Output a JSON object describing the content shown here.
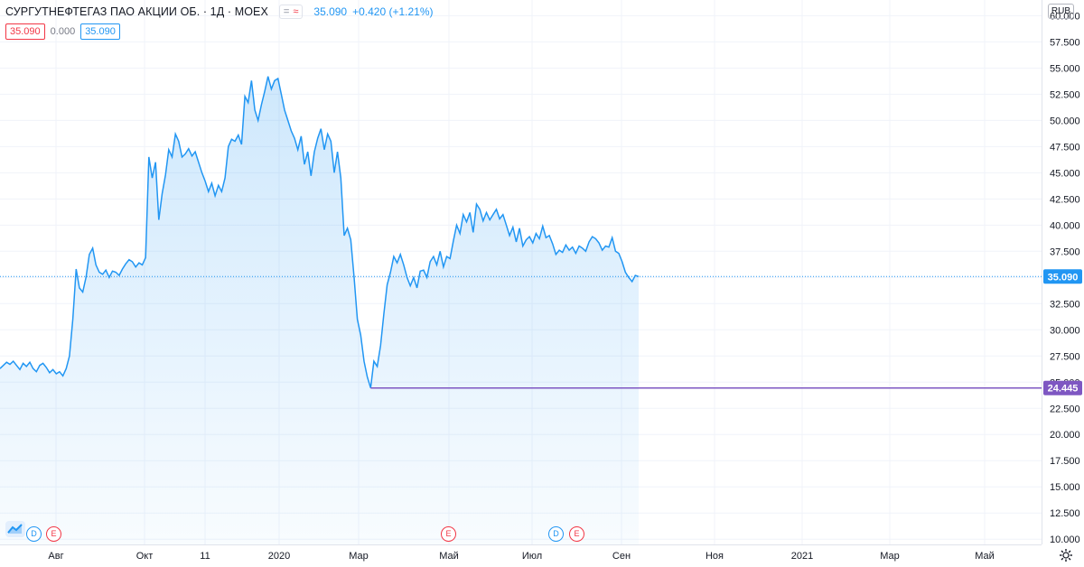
{
  "header": {
    "title": "СУРГУТНЕФТЕГАЗ ПАО АКЦИИ ОБ. · 1Д · MOEX",
    "controls": {
      "eq_glyph": "=",
      "wave_glyph": "≈"
    },
    "last_price": "35.090",
    "change": "+0.420 (+1.21%)"
  },
  "ohlc": {
    "a": "35.090",
    "b": "0.000",
    "c": "35.090"
  },
  "currency": "RUB",
  "colors": {
    "line": "#2196f3",
    "fill": "#2196f3",
    "level_line": "#7e57c2",
    "grid": "#f0f3fa",
    "up": "#2196f3",
    "down": "#f23645"
  },
  "events": [
    {
      "kind": "D"
    },
    {
      "kind": "E"
    },
    {
      "kind": "E"
    },
    {
      "kind": "D"
    },
    {
      "kind": "E"
    }
  ],
  "icons": {
    "logo": "tradingview-logo-icon",
    "settings": "gear-icon"
  },
  "chart_data": {
    "type": "area",
    "title": "",
    "xlabel": "",
    "ylabel": "",
    "ylim": [
      9.5,
      61.5
    ],
    "y_ticks": [
      "10.000",
      "12.500",
      "15.000",
      "17.500",
      "20.000",
      "22.500",
      "25.000",
      "27.500",
      "30.000",
      "32.500",
      "35.000",
      "37.500",
      "40.000",
      "42.500",
      "45.000",
      "47.500",
      "50.000",
      "52.500",
      "55.000",
      "57.500",
      "60.000"
    ],
    "x_ticks": [
      "Авг",
      "Окт",
      "11",
      "2020",
      "Мар",
      "Май",
      "Июл",
      "Сен",
      "Ноя",
      "2021",
      "Мар",
      "Май"
    ],
    "current_price": {
      "value": 35.09,
      "label": "35.090"
    },
    "min_level": {
      "value": 24.445,
      "label": "24.445"
    },
    "grid": true,
    "series": [
      {
        "values": [
          26.3,
          26.6,
          26.9,
          26.7,
          27.0,
          26.6,
          26.2,
          26.8,
          26.5,
          26.9,
          26.3,
          26.0,
          26.6,
          26.8,
          26.4,
          25.9,
          26.2,
          25.8,
          26.0,
          25.6,
          26.3,
          27.5,
          31.0,
          35.8,
          34.0,
          33.6,
          35.0,
          37.2,
          37.8,
          36.2,
          35.5,
          35.3,
          35.7,
          35.0,
          35.6,
          35.5,
          35.2,
          35.8,
          36.3,
          36.7,
          36.5,
          36.0,
          36.4,
          36.2,
          36.9,
          46.5,
          44.5,
          46.0,
          40.5,
          43.0,
          44.8,
          47.2,
          46.5,
          48.7,
          48.0,
          46.5,
          46.8,
          47.3,
          46.6,
          47.0,
          46.0,
          45.0,
          44.2,
          43.2,
          44.0,
          42.8,
          43.8,
          43.2,
          44.5,
          47.5,
          48.2,
          48.0,
          48.6,
          47.7,
          52.3,
          51.7,
          53.8,
          51.0,
          50.0,
          51.5,
          52.8,
          54.2,
          53.0,
          53.8,
          54.0,
          52.5,
          51.0,
          50.0,
          49.0,
          48.3,
          47.2,
          48.5,
          45.8,
          47.0,
          44.7,
          47.0,
          48.3,
          49.2,
          47.2,
          48.7,
          48.0,
          45.0,
          47.0,
          44.5,
          39.0,
          39.7,
          38.6,
          35.0,
          31.0,
          29.5,
          27.0,
          25.5,
          24.445,
          27.0,
          26.5,
          28.5,
          31.5,
          34.3,
          35.5,
          37.0,
          36.4,
          37.2,
          36.2,
          35.0,
          34.2,
          35.0,
          34.0,
          35.6,
          35.7,
          35.0,
          36.5,
          37.0,
          36.2,
          37.5,
          36.0,
          37.0,
          36.8,
          38.5,
          40.0,
          39.2,
          41.0,
          40.3,
          41.2,
          39.3,
          42.0,
          41.5,
          40.4,
          41.2,
          40.5,
          41.0,
          41.5,
          40.6,
          41.0,
          40.0,
          39.0,
          39.8,
          38.4,
          39.7,
          38.0,
          38.6,
          38.9,
          38.3,
          39.2,
          38.7,
          39.9,
          38.8,
          39.0,
          38.2,
          37.2,
          37.6,
          37.4,
          38.1,
          37.6,
          37.9,
          37.3,
          38.0,
          37.8,
          37.5,
          38.4,
          38.9,
          38.7,
          38.3,
          37.6,
          38.0,
          37.9,
          38.8,
          37.5,
          37.3,
          36.5,
          35.5,
          35.0,
          34.6,
          35.2,
          35.09
        ]
      }
    ]
  }
}
